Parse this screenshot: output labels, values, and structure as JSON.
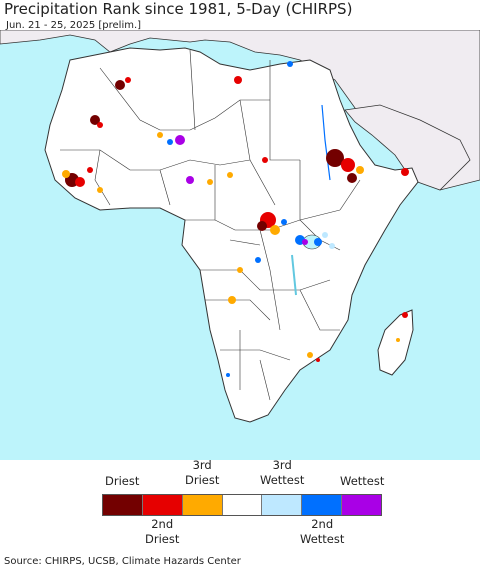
{
  "header": {
    "title": "Precipitation Rank since 1981, 5-Day (CHIRPS)",
    "subtitle": "Jun. 21 - 25, 2025 [prelim.]"
  },
  "map": {
    "ocean_color": "#bdf4fb",
    "land_color": "#ffffff",
    "outside_region_color": "#f0ecf1",
    "border_color": "#333333"
  },
  "legend": {
    "categories": [
      {
        "top": "Driest",
        "bottom": "",
        "color": "#730000"
      },
      {
        "top": "",
        "bottom": "2nd Driest",
        "color": "#e60000"
      },
      {
        "top": "3rd Driest",
        "bottom": "",
        "color": "#ffaa00"
      },
      {
        "top": "",
        "bottom": "",
        "color": "#ffffff"
      },
      {
        "top": "3rd Wettest",
        "bottom": "",
        "color": "#bee8ff"
      },
      {
        "top": "",
        "bottom": "2nd Wettest",
        "color": "#0070ff"
      },
      {
        "top": "Wettest",
        "bottom": "",
        "color": "#a900e6"
      }
    ]
  },
  "footer": {
    "source": "Source: CHIRPS, UCSB, Climate Hazards Center"
  }
}
